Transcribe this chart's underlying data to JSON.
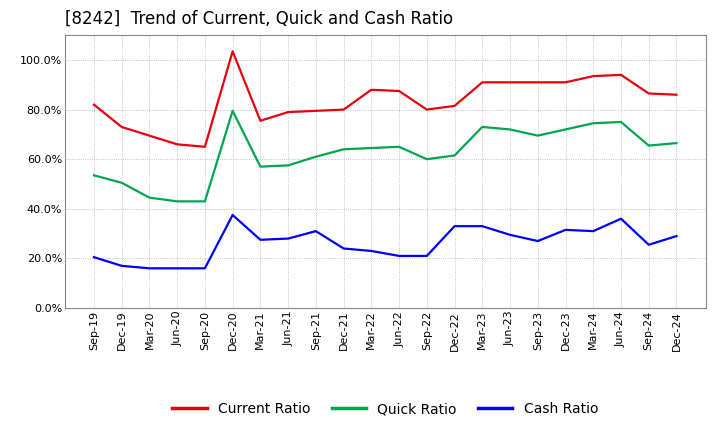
{
  "title": "[8242]  Trend of Current, Quick and Cash Ratio",
  "labels": [
    "Sep-19",
    "Dec-19",
    "Mar-20",
    "Jun-20",
    "Sep-20",
    "Dec-20",
    "Mar-21",
    "Jun-21",
    "Sep-21",
    "Dec-21",
    "Mar-22",
    "Jun-22",
    "Sep-22",
    "Dec-22",
    "Mar-23",
    "Jun-23",
    "Sep-23",
    "Dec-23",
    "Mar-24",
    "Jun-24",
    "Sep-24",
    "Dec-24"
  ],
  "current_ratio": [
    0.82,
    0.73,
    0.695,
    0.66,
    0.65,
    1.035,
    0.755,
    0.79,
    0.795,
    0.8,
    0.88,
    0.875,
    0.8,
    0.815,
    0.91,
    0.91,
    0.91,
    0.91,
    0.935,
    0.94,
    0.865,
    0.86
  ],
  "quick_ratio": [
    0.535,
    0.505,
    0.445,
    0.43,
    0.43,
    0.795,
    0.57,
    0.575,
    0.61,
    0.64,
    0.645,
    0.65,
    0.6,
    0.615,
    0.73,
    0.72,
    0.695,
    0.72,
    0.745,
    0.75,
    0.655,
    0.665
  ],
  "cash_ratio": [
    0.205,
    0.17,
    0.16,
    0.16,
    0.16,
    0.375,
    0.275,
    0.28,
    0.31,
    0.24,
    0.23,
    0.21,
    0.21,
    0.33,
    0.33,
    0.295,
    0.27,
    0.315,
    0.31,
    0.36,
    0.255,
    0.29
  ],
  "current_color": "#e8000d",
  "quick_color": "#00a550",
  "cash_color": "#0000ff",
  "bg_color": "#ffffff",
  "plot_bg_color": "#ffffff",
  "grid_color": "#b0b0b0",
  "ylim": [
    0.0,
    1.1
  ],
  "yticks": [
    0.0,
    0.2,
    0.4,
    0.6,
    0.8,
    1.0
  ],
  "title_fontsize": 12,
  "legend_fontsize": 10,
  "tick_fontsize": 8,
  "line_width": 1.6
}
